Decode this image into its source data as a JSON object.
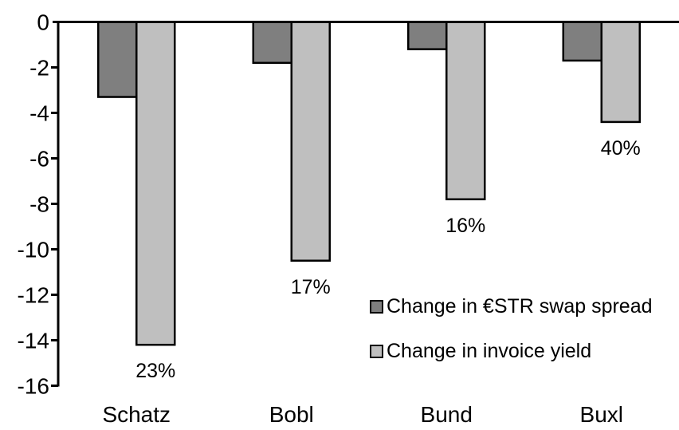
{
  "chart_data": {
    "type": "bar",
    "title": "",
    "xlabel": "",
    "ylabel": "",
    "categories": [
      "Schatz",
      "Bobl",
      "Bund",
      "Buxl"
    ],
    "series": [
      {
        "name": "Change in €STR swap spread",
        "color": "#7f7f7f",
        "values": [
          -3.3,
          -1.8,
          -1.2,
          -1.7
        ]
      },
      {
        "name": "Change in invoice yield",
        "color": "#bfbfbf",
        "values": [
          -14.2,
          -10.5,
          -7.8,
          -4.4
        ],
        "point_labels": [
          "23%",
          "17%",
          "16%",
          "40%"
        ]
      }
    ],
    "ylim": [
      -16,
      0
    ],
    "yticks": [
      0,
      -2,
      -4,
      -6,
      -8,
      -10,
      -12,
      -14,
      -16
    ],
    "grid": false,
    "legend_position": "inside-right",
    "axis_color": "#000000",
    "bar_outline_color": "#000000",
    "background_color": "#ffffff"
  }
}
